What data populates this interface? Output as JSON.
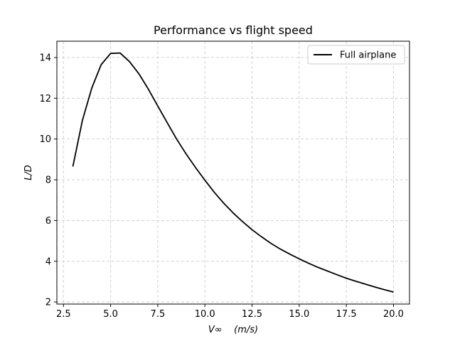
{
  "chart_data": {
    "type": "line",
    "title": "Performance vs flight speed",
    "xlabel": "V∞    (m/s)",
    "ylabel": "L/D",
    "xlim": [
      2.15,
      20.85
    ],
    "ylim": [
      1.9,
      14.8
    ],
    "xticks": [
      2.5,
      5.0,
      7.5,
      10.0,
      12.5,
      15.0,
      17.5,
      20.0
    ],
    "xtick_labels": [
      "2.5",
      "5.0",
      "7.5",
      "10.0",
      "12.5",
      "15.0",
      "17.5",
      "20.0"
    ],
    "yticks": [
      2,
      4,
      6,
      8,
      10,
      12,
      14
    ],
    "ytick_labels": [
      "2",
      "4",
      "6",
      "8",
      "10",
      "12",
      "14"
    ],
    "grid": true,
    "legend_position": "top-right",
    "series": [
      {
        "name": "Full airplane",
        "color": "#000000",
        "x": [
          3.0,
          3.5,
          4.0,
          4.5,
          5.0,
          5.5,
          6.0,
          6.5,
          7.0,
          7.5,
          8.0,
          8.5,
          9.0,
          9.5,
          10.0,
          10.5,
          11.0,
          11.5,
          12.0,
          12.5,
          13.0,
          13.5,
          14.0,
          14.5,
          15.0,
          15.5,
          16.0,
          16.5,
          17.0,
          17.5,
          18.0,
          18.5,
          19.0,
          19.5,
          20.0
        ],
        "y": [
          8.65,
          10.9,
          12.5,
          13.65,
          14.2,
          14.22,
          13.8,
          13.2,
          12.45,
          11.62,
          10.8,
          10.0,
          9.27,
          8.6,
          7.98,
          7.38,
          6.85,
          6.37,
          5.94,
          5.55,
          5.2,
          4.88,
          4.6,
          4.35,
          4.12,
          3.9,
          3.7,
          3.52,
          3.34,
          3.17,
          3.02,
          2.88,
          2.74,
          2.61,
          2.49
        ]
      }
    ]
  }
}
